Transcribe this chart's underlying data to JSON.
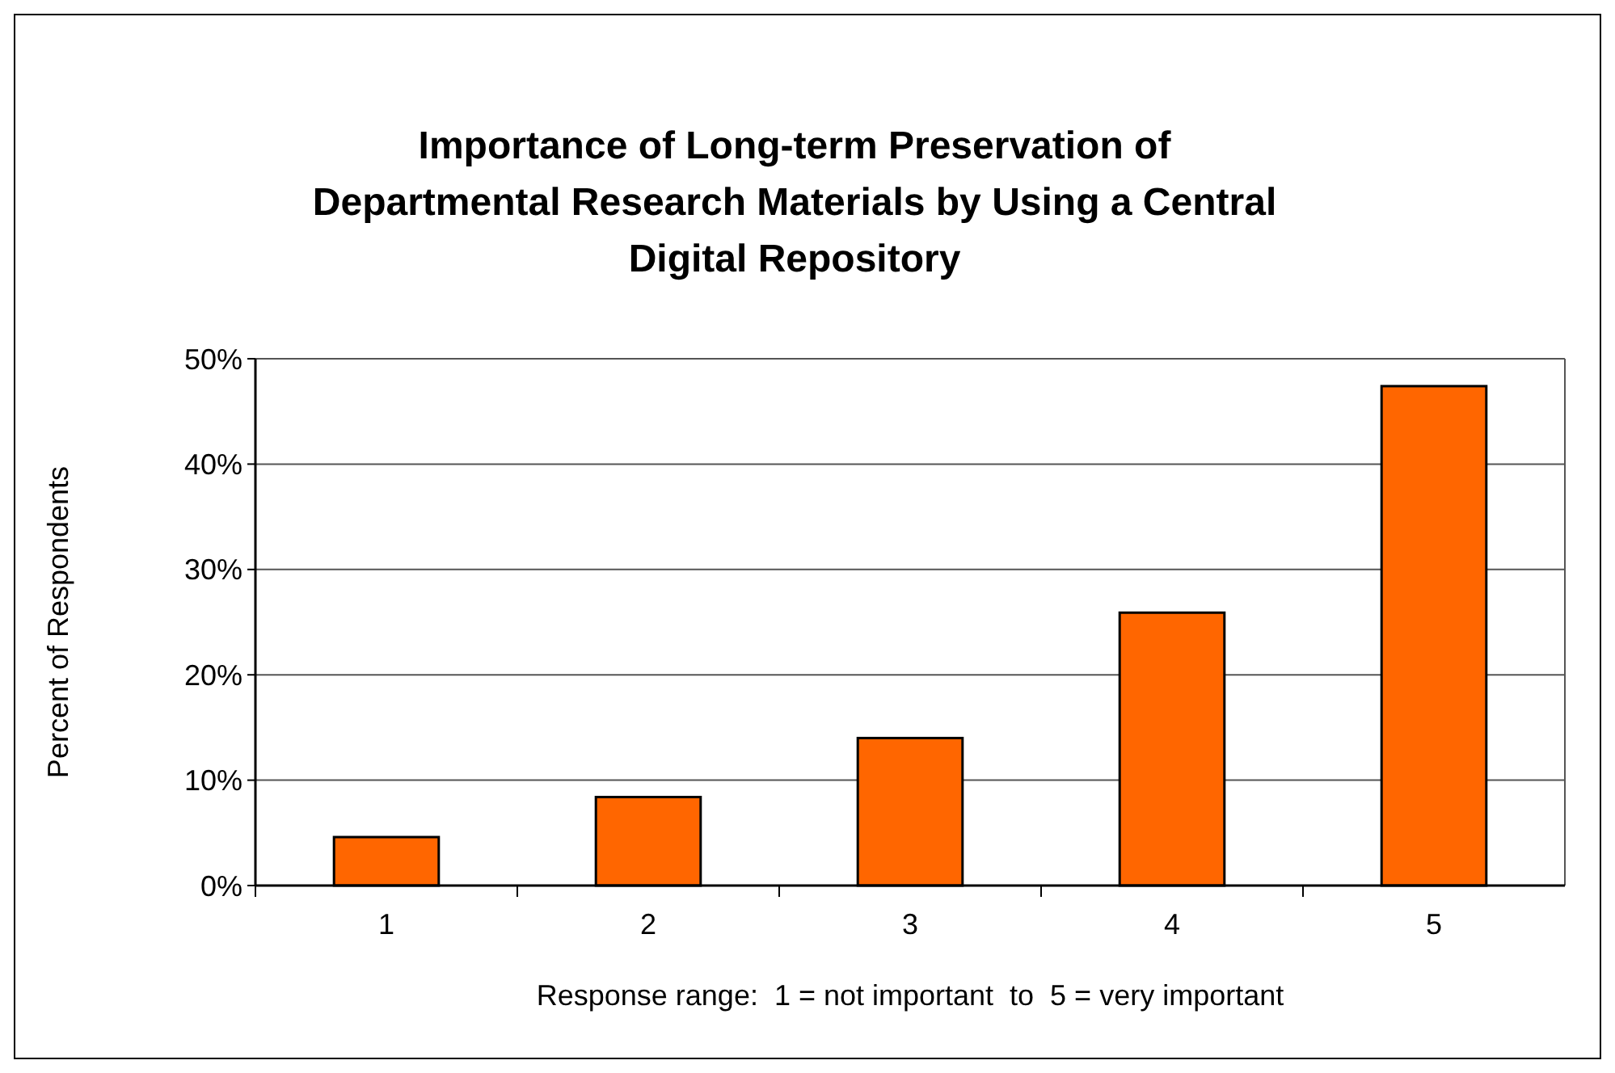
{
  "chart_data": {
    "type": "bar",
    "title": "Importance of Long-term Preservation of\nDepartmental Research Materials by Using a Central\nDigital Repository",
    "xlabel": "Response range:  1 = not important  to  5 = very important",
    "ylabel": "Percent of Respondents",
    "categories": [
      "1",
      "2",
      "3",
      "4",
      "5"
    ],
    "values": [
      4.6,
      8.4,
      14.0,
      25.9,
      47.4
    ],
    "color": "#ff6600",
    "ylim": [
      0,
      50
    ],
    "yticks": [
      {
        "value": 0,
        "label": "0%"
      },
      {
        "value": 10,
        "label": "10%"
      },
      {
        "value": 20,
        "label": "20%"
      },
      {
        "value": 30,
        "label": "30%"
      },
      {
        "value": 40,
        "label": "40%"
      },
      {
        "value": 50,
        "label": "50%"
      }
    ],
    "grid": "y"
  }
}
